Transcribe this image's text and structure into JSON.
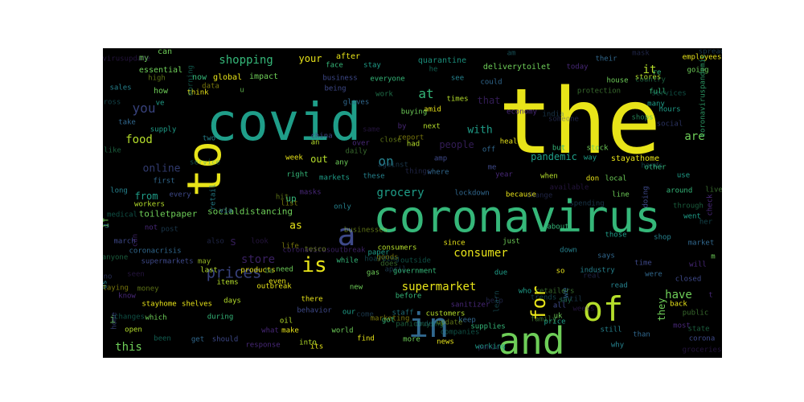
{
  "palette": {
    "yellow": "#e8e419",
    "lime": "#b5de2b",
    "green": "#6ece58",
    "sea": "#35b779",
    "teal": "#1f9e89",
    "cyan": "#26828e",
    "blue": "#31688e",
    "indigo": "#3e4989",
    "purple": "#482878",
    "deep": "#440154",
    "background": "#000000"
  },
  "wordcloud": {
    "words": [
      {
        "text": "the",
        "color": "yellow"
      },
      {
        "text": "covid",
        "color": "teal"
      },
      {
        "text": "coronavirus",
        "color": "sea"
      },
      {
        "text": "to",
        "color": "yellow"
      },
      {
        "text": "and",
        "color": "green"
      },
      {
        "text": "in",
        "color": "blue"
      },
      {
        "text": "of",
        "color": "lime"
      },
      {
        "text": "a",
        "color": "indigo"
      },
      {
        "text": "is",
        "color": "yellow"
      },
      {
        "text": "for",
        "color": "yellow"
      },
      {
        "text": "supermarket",
        "color": "yellow"
      },
      {
        "text": "prices",
        "color": "indigo"
      },
      {
        "text": "store",
        "color": "purple"
      },
      {
        "text": "consumer",
        "color": "yellow"
      },
      {
        "text": "grocery",
        "color": "teal"
      },
      {
        "text": "shopping",
        "color": "sea"
      },
      {
        "text": "you",
        "color": "indigo"
      },
      {
        "text": "food",
        "color": "lime"
      },
      {
        "text": "online",
        "color": "indigo"
      },
      {
        "text": "at",
        "color": "sea"
      },
      {
        "text": "on",
        "color": "cyan"
      },
      {
        "text": "are",
        "color": "green"
      },
      {
        "text": "it",
        "color": "lime"
      },
      {
        "text": "with",
        "color": "teal"
      },
      {
        "text": "people",
        "color": "purple"
      },
      {
        "text": "pandemic",
        "color": "teal"
      },
      {
        "text": "this",
        "color": "green"
      },
      {
        "text": "have",
        "color": "green"
      },
      {
        "text": "they",
        "color": "green"
      },
      {
        "text": "we",
        "color": "blue"
      },
      {
        "text": "s",
        "color": "purple"
      },
      {
        "text": "as",
        "color": "yellow"
      },
      {
        "text": "from",
        "color": "teal"
      },
      {
        "text": "toiletpaper",
        "color": "green"
      },
      {
        "text": "socialdistancing",
        "color": "green"
      },
      {
        "text": "that",
        "color": "purple"
      },
      {
        "text": "your",
        "color": "yellow"
      },
      {
        "text": "up",
        "color": "sea"
      },
      {
        "text": "if",
        "color": "green"
      },
      {
        "text": "i",
        "color": "green"
      },
      {
        "text": "out",
        "color": "lime"
      },
      {
        "text": "essential",
        "color": "green"
      },
      {
        "text": "quarantine",
        "color": "teal"
      },
      {
        "text": "can",
        "color": "green"
      },
      {
        "text": "my",
        "color": "green"
      },
      {
        "text": "now",
        "color": "sea"
      },
      {
        "text": "global",
        "color": "yellow"
      },
      {
        "text": "impact",
        "color": "green"
      },
      {
        "text": "after",
        "color": "yellow"
      },
      {
        "text": "delivery",
        "color": "green"
      },
      {
        "text": "toilet",
        "color": "green"
      },
      {
        "text": "today",
        "color": "green"
      },
      {
        "text": "stores",
        "color": "green"
      },
      {
        "text": "employees",
        "color": "green"
      },
      {
        "text": "going",
        "color": "green"
      },
      {
        "text": "full",
        "color": "green"
      },
      {
        "text": "hours",
        "color": "green"
      },
      {
        "text": "social",
        "color": "indigo"
      },
      {
        "text": "could",
        "color": "green"
      },
      {
        "text": "business",
        "color": "green"
      },
      {
        "text": "everyone",
        "color": "sea"
      },
      {
        "text": "how",
        "color": "green"
      },
      {
        "text": "think",
        "color": "green"
      },
      {
        "text": "u",
        "color": "green"
      },
      {
        "text": "face",
        "color": "green"
      },
      {
        "text": "stay",
        "color": "green"
      },
      {
        "text": "sales",
        "color": "green"
      },
      {
        "text": "gloves",
        "color": "green"
      },
      {
        "text": "being",
        "color": "green"
      },
      {
        "text": "economy",
        "color": "green"
      },
      {
        "text": "times",
        "color": "green"
      },
      {
        "text": "amid",
        "color": "green"
      },
      {
        "text": "buying",
        "color": "green"
      },
      {
        "text": "work",
        "color": "green"
      },
      {
        "text": "supply",
        "color": "green"
      },
      {
        "text": "two",
        "color": "green"
      },
      {
        "text": "take",
        "color": "green"
      },
      {
        "text": "china",
        "color": "green"
      },
      {
        "text": "over",
        "color": "green"
      },
      {
        "text": "had",
        "color": "green"
      },
      {
        "text": "health",
        "color": "green"
      },
      {
        "text": "stock",
        "color": "green"
      },
      {
        "text": "but",
        "color": "green"
      },
      {
        "text": "way",
        "color": "green"
      },
      {
        "text": "stayathome",
        "color": "yellow"
      },
      {
        "text": "off",
        "color": "green"
      },
      {
        "text": "amp",
        "color": "green"
      },
      {
        "text": "by",
        "color": "green"
      },
      {
        "text": "next",
        "color": "green"
      },
      {
        "text": "week",
        "color": "green"
      },
      {
        "text": "any",
        "color": "green"
      },
      {
        "text": "right",
        "color": "green"
      },
      {
        "text": "markets",
        "color": "green"
      },
      {
        "text": "these",
        "color": "green"
      },
      {
        "text": "where",
        "color": "green"
      },
      {
        "text": "me",
        "color": "green"
      },
      {
        "text": "year",
        "color": "green"
      },
      {
        "text": "when",
        "color": "green"
      },
      {
        "text": "don",
        "color": "green"
      },
      {
        "text": "local",
        "color": "green"
      },
      {
        "text": "other",
        "color": "green"
      },
      {
        "text": "use",
        "color": "green"
      },
      {
        "text": "long",
        "color": "green"
      },
      {
        "text": "first",
        "color": "green"
      },
      {
        "text": "every",
        "color": "green"
      },
      {
        "text": "masks",
        "color": "green"
      },
      {
        "text": "lockdown",
        "color": "blue"
      },
      {
        "text": "because",
        "color": "green"
      },
      {
        "text": "line",
        "color": "green"
      },
      {
        "text": "around",
        "color": "green"
      },
      {
        "text": "went",
        "color": "green"
      },
      {
        "text": "only",
        "color": "green"
      },
      {
        "text": "coronacrisis",
        "color": "green"
      },
      {
        "text": "supermarkets",
        "color": "green"
      },
      {
        "text": "coronavirusoutbreak",
        "color": "purple"
      },
      {
        "text": "consumers",
        "color": "green"
      },
      {
        "text": "since",
        "color": "green"
      },
      {
        "text": "just",
        "color": "green"
      },
      {
        "text": "about",
        "color": "green"
      },
      {
        "text": "those",
        "color": "green"
      },
      {
        "text": "shop",
        "color": "green"
      },
      {
        "text": "market",
        "color": "green"
      },
      {
        "text": "march",
        "color": "green"
      },
      {
        "text": "not",
        "color": "green"
      },
      {
        "text": "last",
        "color": "green"
      },
      {
        "text": "products",
        "color": "green"
      },
      {
        "text": "need",
        "color": "green"
      },
      {
        "text": "while",
        "color": "green"
      },
      {
        "text": "paper",
        "color": "green"
      },
      {
        "text": "down",
        "color": "green"
      },
      {
        "text": "says",
        "color": "green"
      },
      {
        "text": "time",
        "color": "green"
      },
      {
        "text": "will",
        "color": "green"
      },
      {
        "text": "items",
        "color": "green"
      },
      {
        "text": "outbreak",
        "color": "green"
      },
      {
        "text": "gas",
        "color": "green"
      },
      {
        "text": "government",
        "color": "green"
      },
      {
        "text": "due",
        "color": "green"
      },
      {
        "text": "industry",
        "color": "green"
      },
      {
        "text": "were",
        "color": "green"
      },
      {
        "text": "closed",
        "color": "green"
      },
      {
        "text": "know",
        "color": "green"
      },
      {
        "text": "days",
        "color": "green"
      },
      {
        "text": "there",
        "color": "green"
      },
      {
        "text": "new",
        "color": "green"
      },
      {
        "text": "before",
        "color": "green"
      },
      {
        "text": "who",
        "color": "green"
      },
      {
        "text": "read",
        "color": "green"
      },
      {
        "text": "stayhome",
        "color": "yellow"
      },
      {
        "text": "behavior",
        "color": "green"
      },
      {
        "text": "sanitizer",
        "color": "green"
      },
      {
        "text": "customers",
        "color": "green"
      },
      {
        "text": "back",
        "color": "green"
      },
      {
        "text": "which",
        "color": "green"
      },
      {
        "text": "during",
        "color": "green"
      },
      {
        "text": "our",
        "color": "green"
      },
      {
        "text": "staff",
        "color": "green"
      },
      {
        "text": "keep",
        "color": "green"
      },
      {
        "text": "all",
        "color": "green"
      },
      {
        "text": "most",
        "color": "green"
      },
      {
        "text": "open",
        "color": "green"
      },
      {
        "text": "make",
        "color": "green"
      },
      {
        "text": "world",
        "color": "green"
      },
      {
        "text": "got",
        "color": "green"
      },
      {
        "text": "price",
        "color": "green"
      },
      {
        "text": "still",
        "color": "green"
      },
      {
        "text": "get",
        "color": "green"
      },
      {
        "text": "should",
        "color": "green"
      },
      {
        "text": "response",
        "color": "green"
      },
      {
        "text": "into",
        "color": "green"
      },
      {
        "text": "its",
        "color": "green"
      },
      {
        "text": "more",
        "color": "green"
      },
      {
        "text": "news",
        "color": "yellow"
      },
      {
        "text": "working",
        "color": "green"
      },
      {
        "text": "why",
        "color": "green"
      },
      {
        "text": "than",
        "color": "green"
      },
      {
        "text": "corona",
        "color": "green"
      },
      {
        "text": "what",
        "color": "green"
      },
      {
        "text": "oil",
        "color": "green"
      },
      {
        "text": "find",
        "color": "green"
      },
      {
        "text": "be",
        "color": "green"
      },
      {
        "text": "supplies",
        "color": "green"
      },
      {
        "text": "been",
        "color": "green"
      },
      {
        "text": "retail",
        "color": "green"
      },
      {
        "text": "via",
        "color": "green"
      },
      {
        "text": "doing",
        "color": "green"
      },
      {
        "text": "check",
        "color": "green"
      },
      {
        "text": "an",
        "color": "green"
      },
      {
        "text": "even",
        "color": "green"
      },
      {
        "text": "house",
        "color": "green"
      },
      {
        "text": "coronaviruspandemic",
        "color": "green"
      },
      {
        "text": "many",
        "color": "green"
      },
      {
        "text": "see",
        "color": "green"
      },
      {
        "text": "their",
        "color": "green"
      },
      {
        "text": "home",
        "color": "green"
      },
      {
        "text": "t",
        "color": "green"
      },
      {
        "text": "workers",
        "color": "green"
      },
      {
        "text": "so",
        "color": "green"
      },
      {
        "text": "m",
        "color": "green"
      },
      {
        "text": "re",
        "color": "green"
      },
      {
        "text": "ve",
        "color": "green"
      },
      {
        "text": "us",
        "color": "green"
      },
      {
        "text": "d",
        "color": "green"
      },
      {
        "text": "no",
        "color": "green"
      },
      {
        "text": "can",
        "color": "green"
      },
      {
        "text": "may",
        "color": "green"
      },
      {
        "text": "shelves",
        "color": "green"
      },
      {
        "text": "uk",
        "color": "green"
      },
      {
        "text": "shops",
        "color": "green"
      },
      {
        "text": "he",
        "color": "green"
      },
      {
        "text": "am",
        "color": "green"
      },
      {
        "text": "spread",
        "color": "green"
      },
      {
        "text": "mask",
        "color": "green"
      },
      {
        "text": "coronavirusupdate",
        "color": "green"
      },
      {
        "text": "high",
        "color": "green"
      },
      {
        "text": "data",
        "color": "green"
      },
      {
        "text": "protection",
        "color": "green"
      },
      {
        "text": "country",
        "color": "green"
      },
      {
        "text": "services",
        "color": "green"
      },
      {
        "text": "across",
        "color": "green"
      },
      {
        "text": "india",
        "color": "green"
      },
      {
        "text": "someone",
        "color": "green"
      },
      {
        "text": "same",
        "color": "green"
      },
      {
        "text": "close",
        "color": "green"
      },
      {
        "text": "report",
        "color": "green"
      },
      {
        "text": "daily",
        "color": "green"
      },
      {
        "text": "like",
        "color": "green"
      },
      {
        "text": "service",
        "color": "green"
      },
      {
        "text": "hands",
        "color": "green"
      },
      {
        "text": "against",
        "color": "green"
      },
      {
        "text": "things",
        "color": "green"
      },
      {
        "text": "available",
        "color": "green"
      },
      {
        "text": "hit",
        "color": "green"
      },
      {
        "text": "list",
        "color": "green"
      },
      {
        "text": "live",
        "color": "green"
      },
      {
        "text": "through",
        "color": "green"
      },
      {
        "text": "medical",
        "color": "green"
      },
      {
        "text": "her",
        "color": "green"
      },
      {
        "text": "post",
        "color": "green"
      },
      {
        "text": "also",
        "color": "green"
      },
      {
        "text": "look",
        "color": "green"
      },
      {
        "text": "businesses",
        "color": "green"
      },
      {
        "text": "goods",
        "color": "green"
      },
      {
        "text": "does",
        "color": "green"
      },
      {
        "text": "anyone",
        "color": "green"
      },
      {
        "text": "outside",
        "color": "green"
      },
      {
        "text": "hoarding",
        "color": "green"
      },
      {
        "text": "april",
        "color": "green"
      },
      {
        "text": "real",
        "color": "green"
      },
      {
        "text": "seen",
        "color": "green"
      },
      {
        "text": "money",
        "color": "green"
      },
      {
        "text": "staying",
        "color": "green"
      },
      {
        "text": "retailers",
        "color": "green"
      },
      {
        "text": "say",
        "color": "green"
      },
      {
        "text": "changes",
        "color": "green"
      },
      {
        "text": "trends",
        "color": "green"
      },
      {
        "text": "until",
        "color": "green"
      },
      {
        "text": "help",
        "color": "green"
      },
      {
        "text": "weeks",
        "color": "green"
      },
      {
        "text": "update",
        "color": "green"
      },
      {
        "text": "marketing",
        "color": "green"
      },
      {
        "text": "family",
        "color": "green"
      },
      {
        "text": "panicbuying",
        "color": "green"
      },
      {
        "text": "companies",
        "color": "green"
      },
      {
        "text": "order",
        "color": "green"
      },
      {
        "text": "come",
        "color": "green"
      },
      {
        "text": "panic",
        "color": "green"
      },
      {
        "text": "groceries",
        "color": "green"
      },
      {
        "text": "tesco",
        "color": "green"
      },
      {
        "text": "life",
        "color": "green"
      },
      {
        "text": "public",
        "color": "green"
      },
      {
        "text": "state",
        "color": "green"
      },
      {
        "text": "morning",
        "color": "green"
      },
      {
        "text": "learn",
        "color": "green"
      },
      {
        "text": "spending",
        "color": "green"
      },
      {
        "text": "change",
        "color": "green"
      },
      {
        "text": "tp",
        "color": "green"
      },
      {
        "text": "run",
        "color": "green"
      },
      {
        "text": "too",
        "color": "green"
      },
      {
        "text": "chain",
        "color": "green"
      }
    ]
  }
}
